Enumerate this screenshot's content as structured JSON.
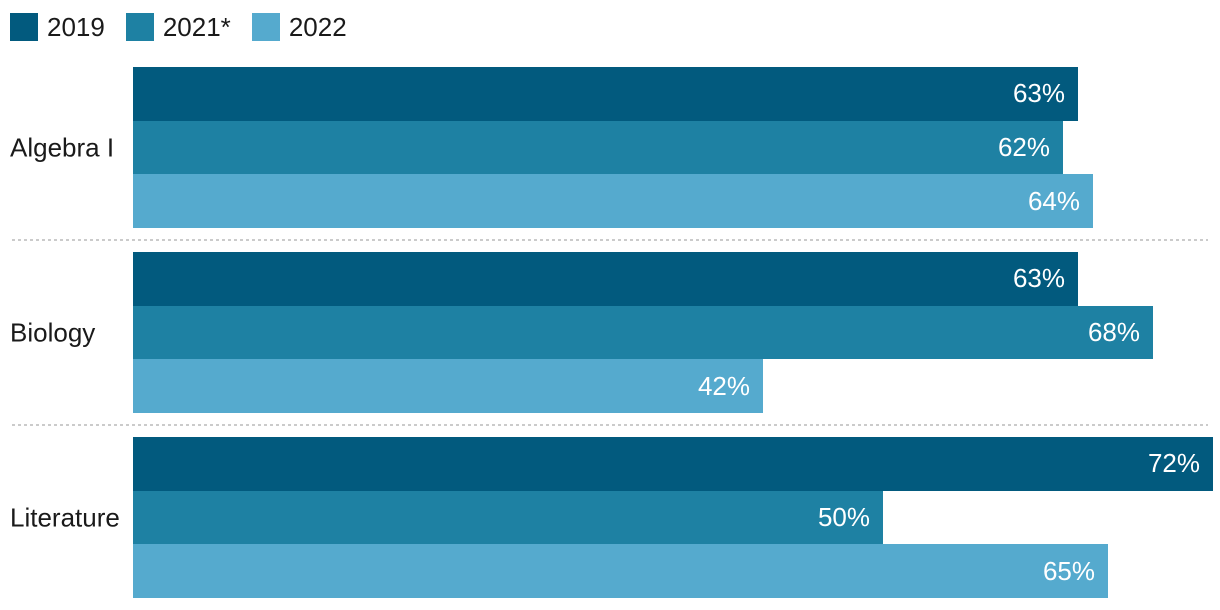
{
  "legend": {
    "items": [
      {
        "label": "2019",
        "color": "#025a7e"
      },
      {
        "label": "2021*",
        "color": "#1e81a3"
      },
      {
        "label": "2022",
        "color": "#55aace"
      }
    ]
  },
  "chart_data": {
    "type": "bar",
    "orientation": "horizontal",
    "title": "",
    "xlabel": "",
    "ylabel": "",
    "categories": [
      "Algebra I",
      "Biology",
      "Literature"
    ],
    "series": [
      {
        "name": "2019",
        "color": "#025a7e",
        "values": [
          63,
          63,
          72
        ]
      },
      {
        "name": "2021*",
        "color": "#1e81a3",
        "values": [
          62,
          68,
          50
        ]
      },
      {
        "name": "2022",
        "color": "#55aace",
        "values": [
          64,
          42,
          65
        ]
      }
    ],
    "value_suffix": "%",
    "value_labels": [
      "63%",
      "62%",
      "64%",
      "63%",
      "68%",
      "42%",
      "72%",
      "50%",
      "65%"
    ],
    "xlim": [
      0,
      72.5
    ],
    "grid": false,
    "legend_position": "top-left",
    "bar_label_position": "inside-end",
    "group_separator": "dotted-line"
  },
  "colors": {
    "background": "#ffffff",
    "category_text": "#1a1a1a",
    "legend_text": "#1a1a1a",
    "bar_value_text": "#ffffff",
    "divider": "#cbcbcb"
  }
}
